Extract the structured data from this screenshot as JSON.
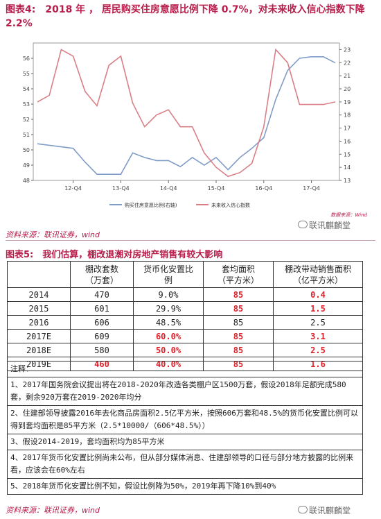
{
  "figure4": {
    "title": "图表4:　2018 年 ， 居民购买住房意愿比例下降 0.7%，对未来收入信心指数下降 2.2%",
    "source": "资料来源：联讯证券，wind",
    "data_source_note": "数据来源：Wind"
  },
  "chart_data": {
    "type": "line",
    "x": [
      "12-Q1",
      "12-Q2",
      "12-Q3",
      "12-Q4",
      "13-Q1",
      "13-Q2",
      "13-Q3",
      "13-Q4",
      "14-Q1",
      "14-Q2",
      "14-Q3",
      "14-Q4",
      "15-Q1",
      "15-Q2",
      "15-Q3",
      "15-Q4",
      "16-Q1",
      "16-Q2",
      "16-Q3",
      "16-Q4",
      "17-Q1",
      "17-Q2",
      "17-Q3",
      "17-Q4",
      "18-Q1",
      "18-Q2"
    ],
    "x_ticks": [
      "12-Q4",
      "13-Q4",
      "14-Q4",
      "15-Q4",
      "16-Q4",
      "17-Q4"
    ],
    "series": [
      {
        "name": "购买住房意愿比例(右轴)",
        "axis": "left",
        "color": "#7f9cc8",
        "values": [
          50.4,
          50.3,
          50.2,
          50.1,
          49.2,
          48.4,
          48.4,
          48.4,
          49.8,
          49.5,
          49.3,
          49.3,
          48.9,
          49.5,
          49.0,
          49.5,
          48.7,
          49.5,
          50.1,
          50.8,
          53.3,
          55.2,
          56.0,
          56.1,
          56.1,
          55.7
        ]
      },
      {
        "name": "未来收入信心指数",
        "axis": "right",
        "color": "#d87f86",
        "values": [
          19.0,
          19.5,
          23.0,
          22.5,
          19.8,
          18.7,
          21.8,
          22.5,
          18.9,
          17.1,
          18.0,
          18.4,
          17.1,
          17.1,
          15.1,
          14.0,
          13.3,
          13.6,
          14.3,
          17.1,
          23.0,
          22.0,
          18.8,
          18.8,
          18.8,
          19.0
        ]
      }
    ],
    "left_ylim": [
      48,
      57
    ],
    "left_ticks": [
      48,
      49,
      50,
      51,
      52,
      53,
      54,
      55,
      56
    ],
    "right_ylim": [
      13,
      23.5
    ],
    "right_ticks": [
      13,
      14,
      15,
      16,
      17,
      18,
      19,
      20,
      21,
      22,
      23
    ],
    "legend_position": "bottom"
  },
  "figure5": {
    "title": "图表5:　我们估算，棚改退潮对房地产销售有较大影响",
    "headers": [
      [
        "棚改套数",
        "（万套）"
      ],
      [
        "货币化安置比",
        "例"
      ],
      [
        "套均面积",
        "（平方米）"
      ],
      [
        "棚改带动销售面积",
        "（亿平方米）"
      ]
    ],
    "rows": [
      {
        "year": "2014",
        "units": "470",
        "ratio": "9.0%",
        "area": "85",
        "sales": "0.4",
        "red": [
          false,
          false,
          true,
          true
        ]
      },
      {
        "year": "2015",
        "units": "601",
        "ratio": "29.9%",
        "area": "85",
        "sales": "1.5",
        "red": [
          false,
          false,
          true,
          true
        ]
      },
      {
        "year": "2016",
        "units": "606",
        "ratio": "48.5%",
        "area": "85",
        "sales": "2.5",
        "red": [
          false,
          false,
          false,
          false
        ]
      },
      {
        "year": "2017E",
        "units": "609",
        "ratio": "60.0%",
        "area": "85",
        "sales": "3.1",
        "red": [
          false,
          true,
          true,
          true
        ]
      },
      {
        "year": "2018E",
        "units": "580",
        "ratio": "50.0%",
        "area": "85",
        "sales": "2.5",
        "red": [
          false,
          true,
          true,
          true
        ]
      },
      {
        "year": "2019E",
        "units": "460",
        "ratio": "40.0%",
        "area": "85",
        "sales": "1.6",
        "red": [
          true,
          true,
          true,
          true
        ]
      }
    ],
    "notes_label": "注释：",
    "notes": [
      "1、2017年国务院会议提出将在2018-2020年改造各类棚户区1500万套，假设2018年足额完成580套，剩余920万套在2019-2020年均分",
      "2、住建部领导披露2016年去化商品房面积2.5亿平方米，按照606万套和48.5%的货币化安置比例可以得到套均面积是85平方米（2.5*10000/（606*48.5%））",
      "3、假设2014-2019，套均面积均为85平方米",
      "4、2017年货币化安置比例尚未公布，但从部分媒体消息、住建部领导的口径与部分地方披露的比例来看，应该会在60%左右",
      "5、2018年货币化安置比例不知，假设比例降为50%，2019年再下降10%到40%"
    ],
    "source": "资料来源：联讯证券，wind"
  },
  "watermark": "联讯麒麟堂"
}
